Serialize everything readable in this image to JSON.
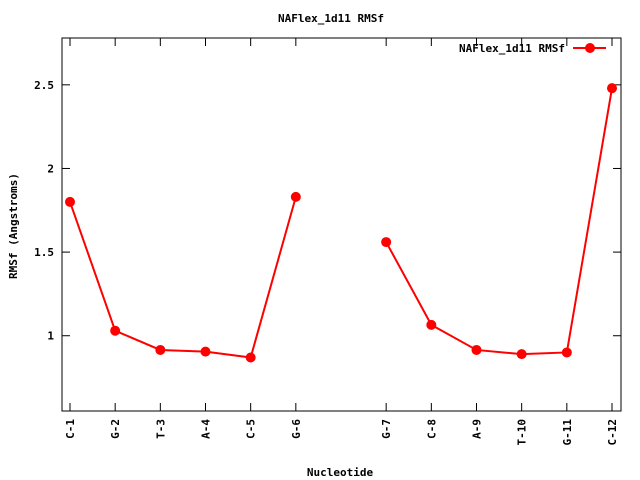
{
  "chart_data": {
    "type": "line",
    "title": "NAFlex_1d11 RMSf",
    "xlabel": "Nucleotide",
    "ylabel": "RMSf (Angstroms)",
    "ylim": [
      0.55,
      2.78
    ],
    "yticks": [
      {
        "value": 1,
        "label": "1"
      },
      {
        "value": 1.5,
        "label": "1.5"
      },
      {
        "value": 2,
        "label": "2"
      },
      {
        "value": 2.5,
        "label": "2.5"
      }
    ],
    "grid": false,
    "legend": "top-right",
    "color": "#ff0000",
    "categories": [
      "C-1",
      "G-2",
      "T-3",
      "A-4",
      "C-5",
      "G-6",
      "G-7",
      "C-8",
      "A-9",
      "T-10",
      "G-11",
      "C-12"
    ],
    "series": [
      {
        "name": "NAFlex_1d11 RMSf",
        "segments": [
          {
            "start": 0,
            "values": [
              1.8,
              1.03,
              0.915,
              0.905,
              0.87,
              1.83
            ]
          },
          {
            "start": 6,
            "values": [
              1.56,
              1.065,
              0.915,
              0.89,
              0.9,
              2.48
            ]
          }
        ]
      }
    ]
  }
}
